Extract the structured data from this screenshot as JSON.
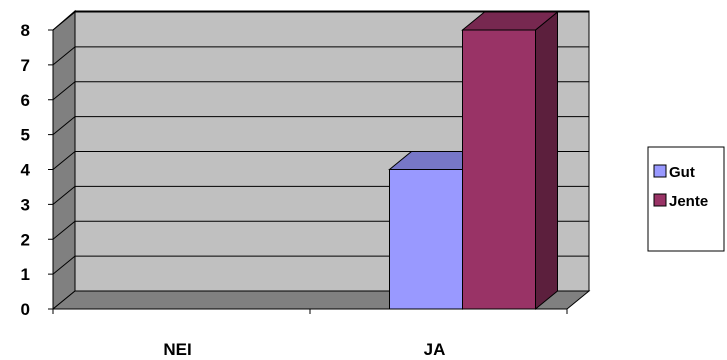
{
  "chart_data": {
    "type": "bar",
    "title": "",
    "xlabel": "",
    "ylabel": "",
    "categories": [
      "NEI",
      "JA"
    ],
    "series": [
      {
        "name": "Gut",
        "values": [
          0,
          4
        ],
        "color": "#9999ff"
      },
      {
        "name": "Jente",
        "values": [
          0,
          8
        ],
        "color": "#993366"
      }
    ],
    "ylim": [
      0,
      8
    ],
    "yticks": [
      "0",
      "1",
      "2",
      "3",
      "4",
      "5",
      "6",
      "7",
      "8"
    ],
    "grid": true,
    "legend_position": "right",
    "style": "3d-clustered-column"
  }
}
